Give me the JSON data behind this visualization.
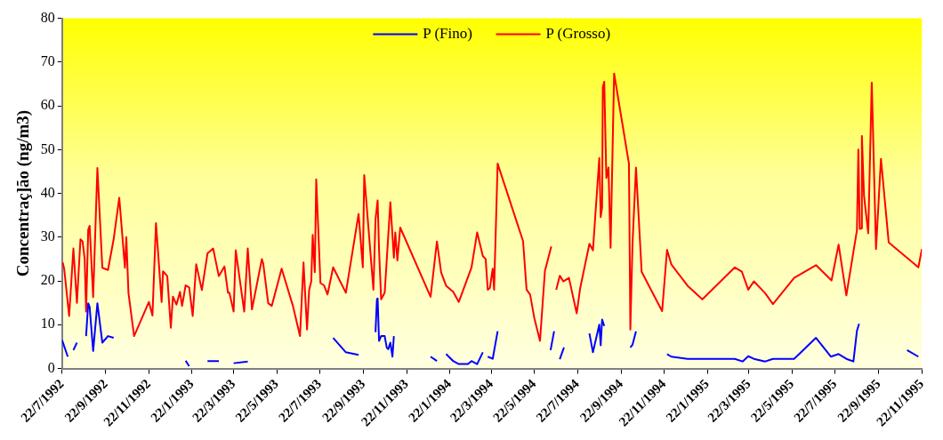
{
  "chart_data": {
    "type": "line",
    "ylabel": "Concentraç]ão (ng/m3)",
    "ylim": [
      0,
      80
    ],
    "yticks": [
      0,
      10,
      20,
      30,
      40,
      50,
      60,
      70,
      80
    ],
    "xlim": [
      "1992-07-22",
      "1995-11-22"
    ],
    "xticks": [
      {
        "value": "1992-07-22",
        "label": "22/7/1992"
      },
      {
        "value": "1992-09-22",
        "label": "22/9/1992"
      },
      {
        "value": "1992-11-22",
        "label": "22/11/1992"
      },
      {
        "value": "1993-01-22",
        "label": "22/1/1993"
      },
      {
        "value": "1993-03-22",
        "label": "22/3/1993"
      },
      {
        "value": "1993-05-22",
        "label": "22/5/1993"
      },
      {
        "value": "1993-07-22",
        "label": "22/7/1993"
      },
      {
        "value": "1993-09-22",
        "label": "22/9/1993"
      },
      {
        "value": "1993-11-22",
        "label": "22/11/1993"
      },
      {
        "value": "1994-01-22",
        "label": "22/1/1994"
      },
      {
        "value": "1994-03-22",
        "label": "22/3/1994"
      },
      {
        "value": "1994-05-22",
        "label": "22/5/1994"
      },
      {
        "value": "1994-07-22",
        "label": "22/7/1994"
      },
      {
        "value": "1994-09-22",
        "label": "22/9/1994"
      },
      {
        "value": "1994-11-22",
        "label": "22/11/1994"
      },
      {
        "value": "1995-01-22",
        "label": "22/1/1995"
      },
      {
        "value": "1995-03-22",
        "label": "22/3/1995"
      },
      {
        "value": "1995-05-22",
        "label": "22/5/1995"
      },
      {
        "value": "1995-07-22",
        "label": "22/7/1995"
      },
      {
        "value": "1995-09-22",
        "label": "22/9/1995"
      },
      {
        "value": "1995-11-22",
        "label": "22/11/1995"
      }
    ],
    "grid": false,
    "legend": "top",
    "marker": "none",
    "line_style": "solid",
    "series": [
      {
        "name": "P (Fino)",
        "color": "#0000ff",
        "x": [
          "1992-07-22",
          "1992-07-30",
          "1992-08-03",
          "1992-08-07",
          "1992-08-12",
          "1992-08-18",
          "1992-08-25",
          "1992-08-28",
          "1992-08-30",
          "1992-09-04",
          "1992-09-10",
          "1992-09-17",
          "1992-09-25",
          "1992-10-03",
          "1992-11-15",
          "1993-01-13",
          "1993-01-18",
          "1993-01-30",
          "1993-02-13",
          "1993-03-01",
          "1993-03-10",
          "1993-03-22",
          "1993-04-11",
          "1993-06-01",
          "1993-08-10",
          "1993-08-28",
          "1993-09-15",
          "1993-10-01",
          "1993-10-09",
          "1993-10-11",
          "1993-10-12",
          "1993-10-14",
          "1993-10-17",
          "1993-10-22",
          "1993-10-25",
          "1993-10-27",
          "1993-10-30",
          "1993-11-02",
          "1993-11-04",
          "1993-12-01",
          "1993-12-26",
          "1994-01-04",
          "1994-01-10",
          "1994-01-17",
          "1994-01-27",
          "1994-02-04",
          "1994-02-17",
          "1994-02-22",
          "1994-03-02",
          "1994-03-10",
          "1994-03-13",
          "1994-03-17",
          "1994-03-24",
          "1994-03-31",
          "1994-05-01",
          "1994-06-14",
          "1994-06-19",
          "1994-06-23",
          "1994-06-27",
          "1994-07-03",
          "1994-07-20",
          "1994-08-08",
          "1994-08-13",
          "1994-08-22",
          "1994-08-24",
          "1994-08-26",
          "1994-08-29",
          "1994-09-15",
          "1994-10-05",
          "1994-10-08",
          "1994-10-13",
          "1994-11-01",
          "1994-11-26",
          "1994-12-02",
          "1994-12-25",
          "1995-01-15",
          "1995-03-02",
          "1995-03-13",
          "1995-03-21",
          "1995-03-29",
          "1995-04-14",
          "1995-04-25",
          "1995-05-25",
          "1995-06-25",
          "1995-07-16",
          "1995-07-27",
          "1995-08-07",
          "1995-08-17",
          "1995-08-22",
          "1995-08-25",
          "1995-10-01",
          "1995-11-01",
          "1995-11-17"
        ],
        "values": [
          6.5,
          2.7,
          null,
          4.2,
          5.9,
          null,
          7.4,
          14.9,
          14.1,
          4,
          14.9,
          5.9,
          7.4,
          7,
          null,
          1.8,
          0.5,
          null,
          1.7,
          1.7,
          null,
          1.2,
          1.6,
          null,
          7,
          3.7,
          3.1,
          null,
          8.3,
          15.8,
          16,
          6.3,
          7.4,
          7.4,
          4.7,
          4.4,
          5.9,
          2.7,
          7.4,
          null,
          2.7,
          1.7,
          null,
          3.3,
          1.7,
          1,
          1,
          1.7,
          1,
          3.7,
          null,
          2.7,
          2.2,
          8.5,
          null,
          4.2,
          8.5,
          null,
          2.1,
          4.8,
          null,
          8,
          3.7,
          10,
          5.3,
          11.2,
          9.7,
          null,
          4.8,
          5.4,
          8.5,
          null,
          3.3,
          2.7,
          2.2,
          2.2,
          2.2,
          1.6,
          2.8,
          2.2,
          1.6,
          2.2,
          2.2,
          7,
          2.7,
          3.3,
          2.2,
          1.6,
          8.6,
          10.2,
          null,
          4.2,
          2.7
        ]
      },
      {
        "name": "P (Grosso)",
        "color": "#ff0000",
        "x": [
          "1992-07-23",
          "1992-07-25",
          "1992-08-01",
          "1992-08-07",
          "1992-08-12",
          "1992-08-17",
          "1992-08-20",
          "1992-08-23",
          "1992-08-25",
          "1992-08-28",
          "1992-08-30",
          "1992-09-04",
          "1992-09-10",
          "1992-09-17",
          "1992-09-25",
          "1992-10-03",
          "1992-10-11",
          "1992-10-19",
          "1992-10-21",
          "1992-10-24",
          "1992-11-01",
          "1992-11-22",
          "1992-11-27",
          "1992-12-02",
          "1992-12-10",
          "1992-12-12",
          "1992-12-18",
          "1992-12-23",
          "1992-12-26",
          "1992-12-31",
          "1993-01-05",
          "1993-01-08",
          "1993-01-13",
          "1993-01-18",
          "1993-01-23",
          "1993-01-28",
          "1993-02-05",
          "1993-02-13",
          "1993-02-21",
          "1993-03-01",
          "1993-03-09",
          "1993-03-14",
          "1993-03-16",
          "1993-03-22",
          "1993-03-25",
          "1993-04-06",
          "1993-04-11",
          "1993-04-17",
          "1993-05-01",
          "1993-05-03",
          "1993-05-10",
          "1993-05-15",
          "1993-05-29",
          "1993-06-14",
          "1993-06-24",
          "1993-06-29",
          "1993-07-04",
          "1993-07-07",
          "1993-07-10",
          "1993-07-12",
          "1993-07-15",
          "1993-07-17",
          "1993-07-23",
          "1993-07-28",
          "1993-08-02",
          "1993-08-10",
          "1993-08-28",
          "1993-09-15",
          "1993-09-21",
          "1993-09-23",
          "1993-10-06",
          "1993-10-09",
          "1993-10-12",
          "1993-10-14",
          "1993-10-17",
          "1993-10-22",
          "1993-10-30",
          "1993-11-04",
          "1993-11-06",
          "1993-11-09",
          "1993-11-13",
          "1993-12-26",
          "1994-01-04",
          "1994-01-10",
          "1994-01-17",
          "1994-01-27",
          "1994-02-04",
          "1994-02-22",
          "1994-03-02",
          "1994-03-10",
          "1994-03-14",
          "1994-03-17",
          "1994-03-20",
          "1994-03-24",
          "1994-03-26",
          "1994-03-31",
          "1994-05-06",
          "1994-05-11",
          "1994-05-16",
          "1994-05-22",
          "1994-05-30",
          "1994-06-06",
          "1994-06-15",
          "1994-06-18",
          "1994-06-22",
          "1994-06-27",
          "1994-07-02",
          "1994-07-10",
          "1994-07-21",
          "1994-07-26",
          "1994-08-08",
          "1994-08-13",
          "1994-08-22",
          "1994-08-24",
          "1994-08-26",
          "1994-08-27",
          "1994-08-29",
          "1994-09-01",
          "1994-09-04",
          "1994-09-07",
          "1994-09-12",
          "1994-10-03",
          "1994-10-05",
          "1994-10-08",
          "1994-10-13",
          "1994-10-21",
          "1994-11-19",
          "1994-11-26",
          "1994-12-02",
          "1994-12-25",
          "1995-01-15",
          "1995-03-02",
          "1995-03-12",
          "1995-03-21",
          "1995-03-29",
          "1995-04-14",
          "1995-04-25",
          "1995-05-25",
          "1995-06-25",
          "1995-07-17",
          "1995-07-27",
          "1995-08-07",
          "1995-08-22",
          "1995-08-24",
          "1995-08-26",
          "1995-08-28",
          "1995-08-29",
          "1995-09-01",
          "1995-09-07",
          "1995-09-12",
          "1995-09-18",
          "1995-09-25",
          "1995-10-06",
          "1995-11-17",
          "1995-11-22"
        ],
        "values": [
          24.2,
          22.7,
          12,
          27.4,
          15,
          29.5,
          29,
          25,
          13,
          31.7,
          32.6,
          16.3,
          45.8,
          23,
          22.5,
          29.5,
          39,
          23,
          30,
          17.3,
          7.4,
          15.2,
          12.1,
          33.2,
          15.2,
          22.2,
          21.1,
          9.3,
          16.4,
          14.6,
          17.5,
          14.3,
          19,
          18.5,
          12,
          23.8,
          17.9,
          26.3,
          27.4,
          21.1,
          23.3,
          17.3,
          17.3,
          13,
          27,
          13,
          27.4,
          13.5,
          25,
          23.9,
          14.9,
          14.3,
          22.8,
          14.3,
          7.4,
          24.2,
          8.9,
          18,
          19.9,
          30.5,
          22,
          43.2,
          19.5,
          19,
          16.9,
          23.1,
          17.3,
          35.3,
          23.1,
          44.2,
          18,
          34.1,
          38.4,
          27.1,
          15.8,
          17.3,
          38,
          25.3,
          31.1,
          24.7,
          32.2,
          16.4,
          29,
          21.9,
          18.9,
          17.5,
          15.2,
          23.1,
          31.1,
          25.7,
          25,
          18,
          18.4,
          22.8,
          18,
          46.8,
          29.1,
          18,
          16.9,
          11.5,
          6.3,
          22.3,
          27.9,
          null,
          18,
          21.2,
          19.9,
          20.7,
          12.6,
          18.4,
          28.5,
          27,
          48.1,
          34.6,
          36.8,
          64.3,
          65.5,
          43.5,
          45.9,
          27.6,
          67.4,
          46.8,
          8.9,
          28.3,
          45.9,
          22.1,
          13.1,
          27.1,
          23.8,
          18.9,
          15.8,
          23.1,
          22.1,
          18,
          19.9,
          17.2,
          14.7,
          20.7,
          23.6,
          20.1,
          28.3,
          16.7,
          31.6,
          50,
          31.9,
          32,
          53.1,
          39.5,
          30.9,
          65.3,
          27.3,
          47.9,
          28.8,
          23.1,
          27.3
        ]
      }
    ]
  }
}
